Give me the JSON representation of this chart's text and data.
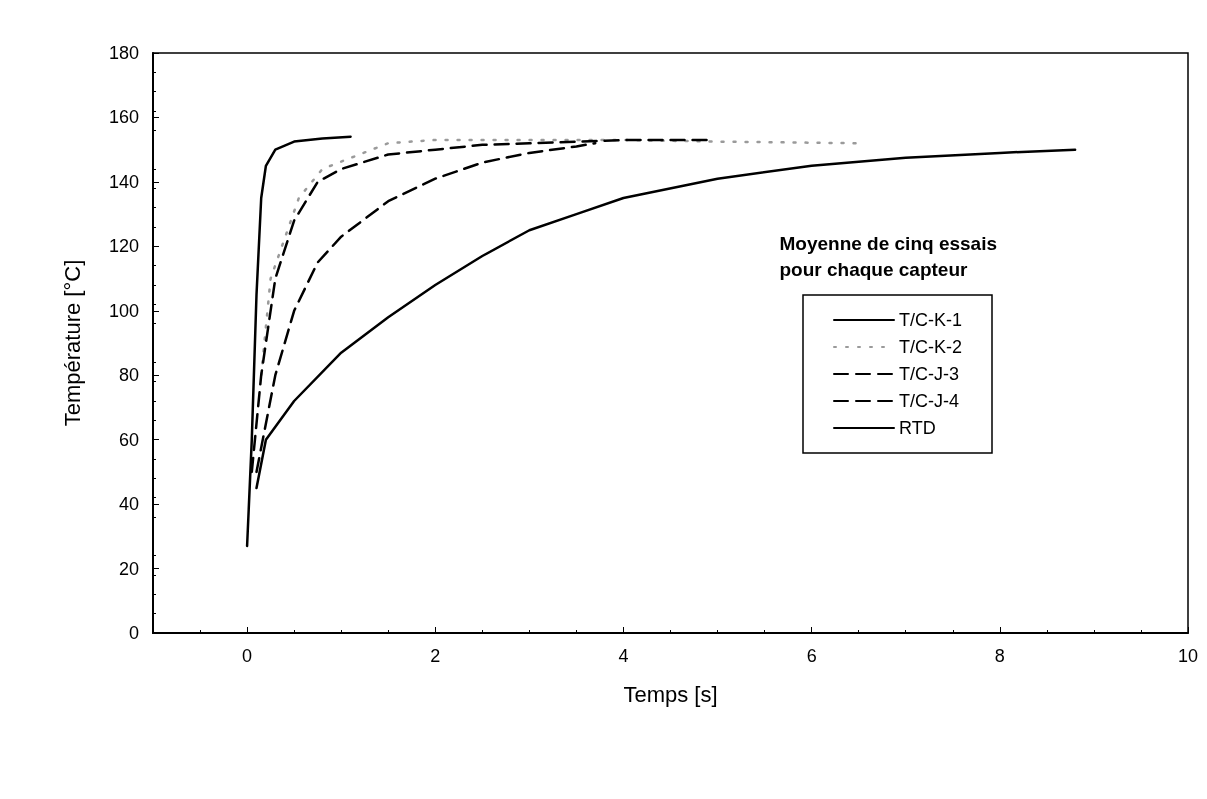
{
  "chart_data": {
    "type": "line",
    "xlabel": "Temps [s]",
    "ylabel": "Température [°C]",
    "legend_title": "Moyenne de cinq essais\npour chaque capteur",
    "legend": "right",
    "grid": false,
    "marker": "none",
    "xlim": [
      -1,
      10
    ],
    "xticks": [
      0,
      2,
      4,
      6,
      8,
      10
    ],
    "ylim": [
      0,
      180
    ],
    "yticks": [
      0,
      20,
      40,
      60,
      80,
      100,
      120,
      140,
      160,
      180
    ],
    "series": [
      {
        "name": "T/C-K-1",
        "color": "#000000",
        "line_style": "solid",
        "x": [
          0,
          0.05,
          0.1,
          0.15,
          0.2,
          0.3,
          0.5,
          0.8,
          1.1
        ],
        "values": [
          27,
          60,
          105,
          135,
          145,
          150,
          152.5,
          153.5,
          154
        ]
      },
      {
        "name": "T/C-K-2",
        "color": "#9a9a9a",
        "line_style": "dotted",
        "x": [
          0.15,
          0.25,
          0.55,
          0.8,
          1.5,
          2,
          3,
          4,
          5,
          6.5
        ],
        "values": [
          80,
          110,
          135,
          144,
          152,
          153,
          153,
          153,
          152.5,
          152
        ]
      },
      {
        "name": "T/C-J-3",
        "color": "#000000",
        "line_style": "dashed",
        "x": [
          0.05,
          0.15,
          0.3,
          0.5,
          0.75,
          1,
          1.5,
          2,
          2.5,
          3,
          3.5,
          4,
          4.5,
          4.9
        ],
        "values": [
          50,
          80,
          110,
          128,
          140,
          144,
          148.5,
          150,
          151.5,
          152,
          152.5,
          153,
          153,
          153
        ]
      },
      {
        "name": "T/C-J-4",
        "color": "#000000",
        "line_style": "dashed",
        "x": [
          0.1,
          0.3,
          0.5,
          0.75,
          1,
          1.5,
          2,
          2.5,
          3,
          3.5,
          3.7
        ],
        "values": [
          50,
          80,
          100,
          115,
          123,
          134,
          141,
          146,
          149,
          151,
          152
        ]
      },
      {
        "name": "RTD",
        "color": "#000000",
        "line_style": "solid",
        "x": [
          0.1,
          0.2,
          0.5,
          1,
          1.5,
          2,
          2.5,
          3,
          3.5,
          4,
          5,
          6,
          7,
          8,
          8.8
        ],
        "values": [
          45,
          60,
          72,
          87,
          98,
          108,
          117,
          125,
          130,
          135,
          141,
          145,
          147.5,
          149,
          150
        ]
      }
    ]
  }
}
